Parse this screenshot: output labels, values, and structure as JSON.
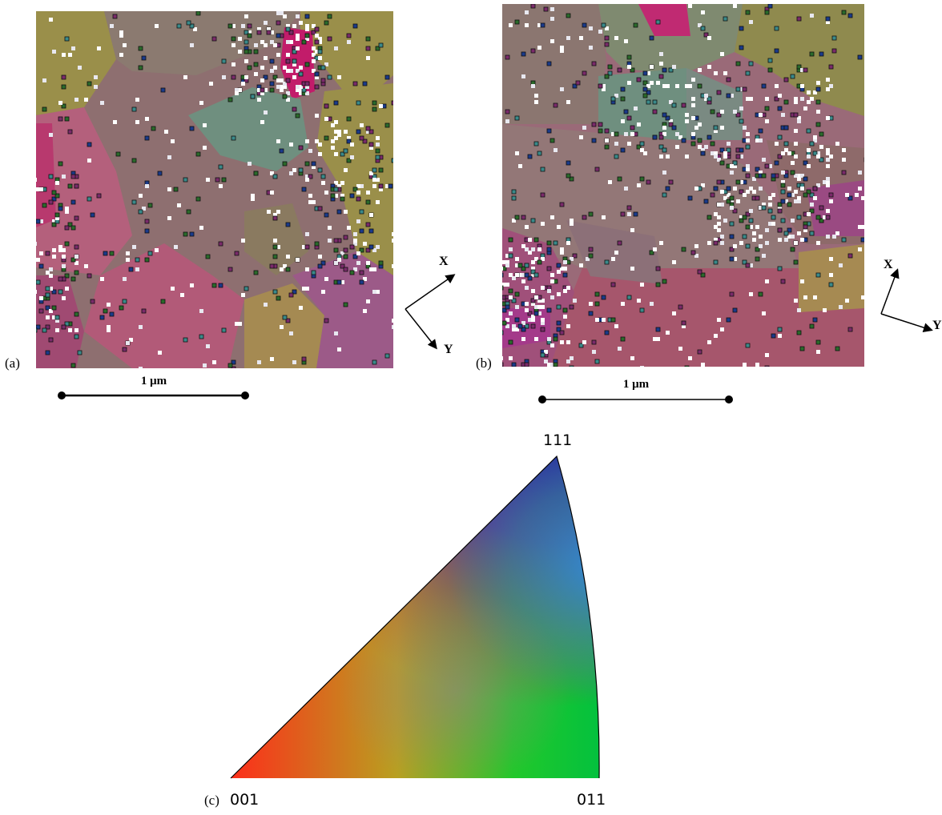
{
  "panels": {
    "a": {
      "label": "(a)",
      "scale_bar": "1 μm",
      "axes": {
        "x": "X",
        "y": "Y"
      }
    },
    "b": {
      "label": "(b)",
      "scale_bar": "1 μm",
      "axes": {
        "x": "X",
        "y": "Y"
      }
    },
    "c": {
      "label": "(c)",
      "corners": {
        "top": "111",
        "bottom_left": "001",
        "bottom_right": "011"
      }
    }
  },
  "colors": {
    "grain_olive": "#9a8f4a",
    "grain_mauve": "#8e6f70",
    "grain_magenta": "#c0397a",
    "grain_teal": "#6f8f7f",
    "grain_pink": "#b4607c",
    "ipf_red": "#ff2a1a",
    "ipf_green": "#00c82a",
    "ipf_blue": "#2a2aa0",
    "ipf_sky": "#2f8ee0"
  },
  "icons": {
    "scalebar_end": "dot-icon",
    "arrow": "arrow-icon"
  }
}
